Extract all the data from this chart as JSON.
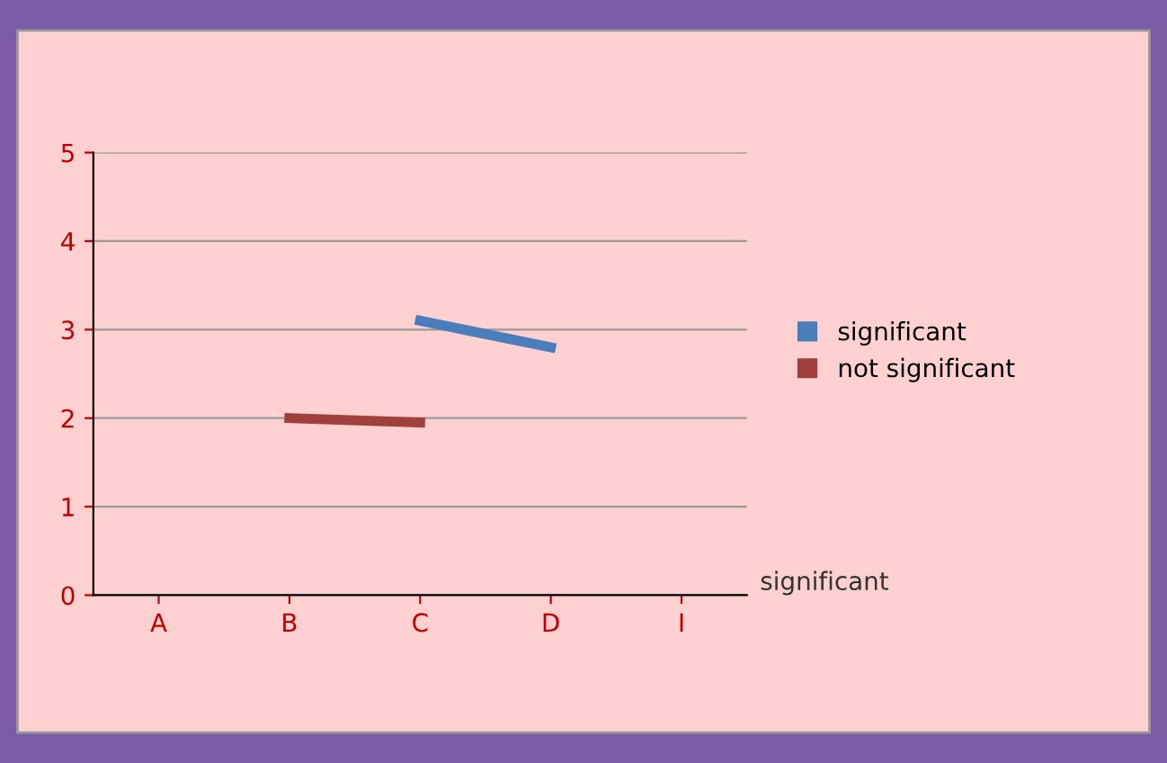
{
  "chart_data": {
    "type": "line",
    "categories": [
      "A",
      "B",
      "C",
      "D",
      "I"
    ],
    "series": [
      {
        "name": "significant",
        "color": "#4a7ebb",
        "values": [
          null,
          null,
          3.1,
          2.8,
          null
        ]
      },
      {
        "name": "not significant",
        "color": "#a0403c",
        "values": [
          null,
          2.0,
          1.95,
          null,
          null
        ]
      }
    ],
    "ylim": [
      0,
      5
    ],
    "yticks": [
      0,
      1,
      2,
      3,
      4,
      5
    ],
    "grid": "y",
    "legend": "right",
    "marker": "none",
    "line_style": "solid",
    "annotations": [
      "significant"
    ]
  }
}
